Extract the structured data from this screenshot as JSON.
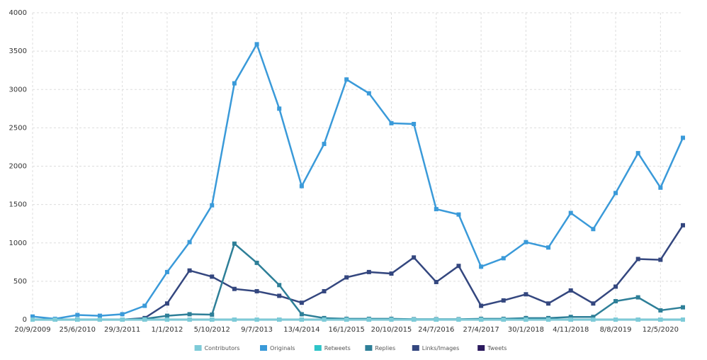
{
  "chart_data": {
    "type": "line",
    "categories": [
      "20/9/2009",
      null,
      "25/6/2010",
      null,
      "29/3/2011",
      null,
      "1/1/2012",
      null,
      "5/10/2012",
      null,
      "9/7/2013",
      null,
      "13/4/2014",
      null,
      "16/1/2015",
      null,
      "20/10/2015",
      null,
      "24/7/2016",
      null,
      "27/4/2017",
      null,
      "30/1/2018",
      null,
      "4/11/2018",
      null,
      "8/8/2019",
      null,
      "12/5/2020",
      null
    ],
    "ylim": [
      0,
      4000
    ],
    "yticks": [
      0,
      500,
      1000,
      1500,
      2000,
      2500,
      3000,
      3500,
      4000
    ],
    "grid": true,
    "legend": "bottom",
    "series": [
      {
        "name": "Contributors",
        "color": "#7ecbd8",
        "values": [
          0,
          0,
          0,
          0,
          0,
          0,
          0,
          0,
          0,
          0,
          0,
          0,
          0,
          0,
          0,
          0,
          0,
          0,
          0,
          0,
          0,
          0,
          0,
          0,
          0,
          0,
          0,
          0,
          0,
          0
        ]
      },
      {
        "name": "Originals",
        "color": "#3a9ad9",
        "values": [
          40,
          10,
          60,
          50,
          70,
          180,
          620,
          1010,
          1490,
          3080,
          3590,
          2750,
          1740,
          2290,
          3130,
          2950,
          2560,
          2550,
          1440,
          1370,
          690,
          800,
          1010,
          940,
          1390,
          1180,
          1650,
          2170,
          1720,
          2370
        ]
      },
      {
        "name": "Retweets",
        "color": "#2ec4c8",
        "values": [
          0,
          0,
          0,
          0,
          0,
          0,
          0,
          0,
          0,
          0,
          0,
          0,
          0,
          0,
          0,
          0,
          0,
          0,
          0,
          0,
          0,
          0,
          0,
          0,
          0,
          0,
          0,
          0,
          0,
          0
        ]
      },
      {
        "name": "Replies",
        "color": "#2e7f98",
        "values": [
          0,
          0,
          0,
          0,
          0,
          10,
          50,
          70,
          65,
          990,
          740,
          450,
          70,
          20,
          10,
          10,
          10,
          5,
          5,
          5,
          10,
          10,
          20,
          20,
          35,
          35,
          240,
          290,
          120,
          160
        ]
      },
      {
        "name": "Links/Images",
        "color": "#34477f",
        "values": [
          0,
          0,
          0,
          0,
          0,
          20,
          210,
          640,
          560,
          400,
          370,
          310,
          220,
          370,
          550,
          620,
          600,
          810,
          490,
          700,
          180,
          250,
          330,
          210,
          380,
          210,
          430,
          790,
          780,
          1230
        ]
      },
      {
        "name": "Tweets",
        "color": "#2b1a5e",
        "values": [
          0,
          0,
          0,
          0,
          0,
          0,
          0,
          0,
          0,
          0,
          0,
          0,
          0,
          0,
          0,
          0,
          0,
          0,
          0,
          0,
          0,
          0,
          0,
          0,
          0,
          0,
          0,
          0,
          0,
          0
        ]
      }
    ]
  }
}
